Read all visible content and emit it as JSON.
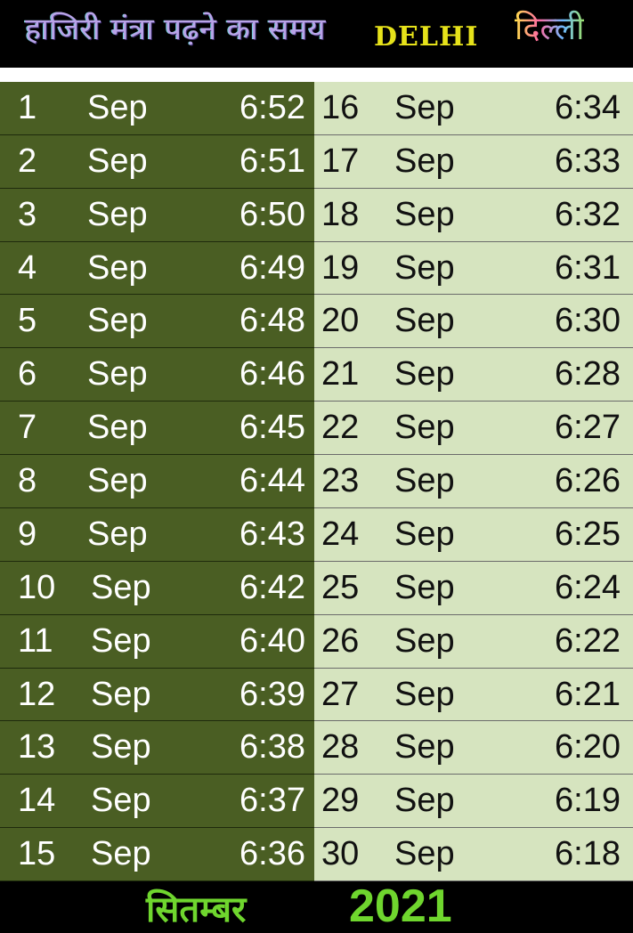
{
  "header": {
    "title_hindi": "हाजिरी मंत्रा पढ़ने का समय",
    "city_english": "DELHI",
    "city_hindi": "दिल्ली"
  },
  "rows_left": [
    {
      "day": "1",
      "month": "Sep",
      "time": "6:52"
    },
    {
      "day": "2",
      "month": "Sep",
      "time": "6:51"
    },
    {
      "day": "3",
      "month": "Sep",
      "time": "6:50"
    },
    {
      "day": "4",
      "month": "Sep",
      "time": "6:49"
    },
    {
      "day": "5",
      "month": "Sep",
      "time": "6:48"
    },
    {
      "day": "6",
      "month": "Sep",
      "time": "6:46"
    },
    {
      "day": "7",
      "month": "Sep",
      "time": "6:45"
    },
    {
      "day": "8",
      "month": "Sep",
      "time": "6:44"
    },
    {
      "day": "9",
      "month": "Sep",
      "time": "6:43"
    },
    {
      "day": "10",
      "month": "Sep",
      "time": "6:42"
    },
    {
      "day": "11",
      "month": "Sep",
      "time": "6:40"
    },
    {
      "day": "12",
      "month": "Sep",
      "time": "6:39"
    },
    {
      "day": "13",
      "month": "Sep",
      "time": "6:38"
    },
    {
      "day": "14",
      "month": "Sep",
      "time": "6:37"
    },
    {
      "day": "15",
      "month": "Sep",
      "time": "6:36"
    }
  ],
  "rows_right": [
    {
      "day": "16",
      "month": "Sep",
      "time": "6:34"
    },
    {
      "day": "17",
      "month": "Sep",
      "time": "6:33"
    },
    {
      "day": "18",
      "month": "Sep",
      "time": "6:32"
    },
    {
      "day": "19",
      "month": "Sep",
      "time": "6:31"
    },
    {
      "day": "20",
      "month": "Sep",
      "time": "6:30"
    },
    {
      "day": "21",
      "month": "Sep",
      "time": "6:28"
    },
    {
      "day": "22",
      "month": "Sep",
      "time": "6:27"
    },
    {
      "day": "23",
      "month": "Sep",
      "time": "6:26"
    },
    {
      "day": "24",
      "month": "Sep",
      "time": "6:25"
    },
    {
      "day": "25",
      "month": "Sep",
      "time": "6:24"
    },
    {
      "day": "26",
      "month": "Sep",
      "time": "6:22"
    },
    {
      "day": "27",
      "month": "Sep",
      "time": "6:21"
    },
    {
      "day": "28",
      "month": "Sep",
      "time": "6:20"
    },
    {
      "day": "29",
      "month": "Sep",
      "time": "6:19"
    },
    {
      "day": "30",
      "month": "Sep",
      "time": "6:18"
    }
  ],
  "footer": {
    "month_hindi": "सितम्बर",
    "year": "2021"
  },
  "colors": {
    "left_bg": "#4a5e23",
    "right_bg": "#d6e4bf",
    "footer_text": "#6fd62e",
    "english_city": "#e6e21a"
  }
}
